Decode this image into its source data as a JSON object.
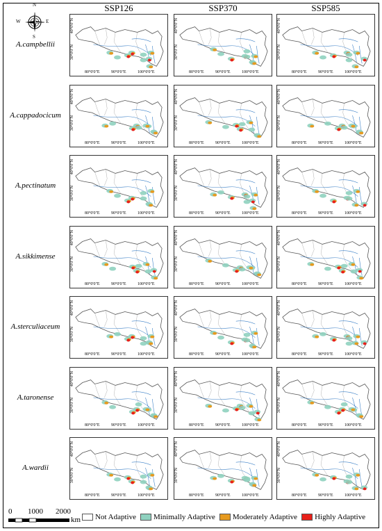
{
  "scenarios": [
    "SSP126",
    "SSP370",
    "SSP585"
  ],
  "species": [
    "A.campbellii",
    "A.cappadocicum",
    "A.pectinatum",
    "A.sikkimense",
    "A.sterculiaceum",
    "A.taronense",
    "A.wardii"
  ],
  "latitude_labels": [
    "40°0'0\"N",
    "30°0'0\"N"
  ],
  "longitude_labels": [
    "80°0'0\"E",
    "90°0'0\"E",
    "100°0'0\"E"
  ],
  "compass": {
    "n": "N",
    "s": "S",
    "e": "E",
    "w": "W"
  },
  "scalebar": {
    "ticks": [
      "0",
      "1000",
      "2000"
    ],
    "unit": "km"
  },
  "legend": [
    {
      "label": "Not Adaptive",
      "color": "#ffffff"
    },
    {
      "label": "Minimally Adaptive",
      "color": "#8fd1bf"
    },
    {
      "label": "Moderately Adaptive",
      "color": "#e69a1f"
    },
    {
      "label": "Highly Adaptive",
      "color": "#e8201a"
    }
  ],
  "colors": {
    "river": "#3a7fc6",
    "border": "#555555"
  }
}
